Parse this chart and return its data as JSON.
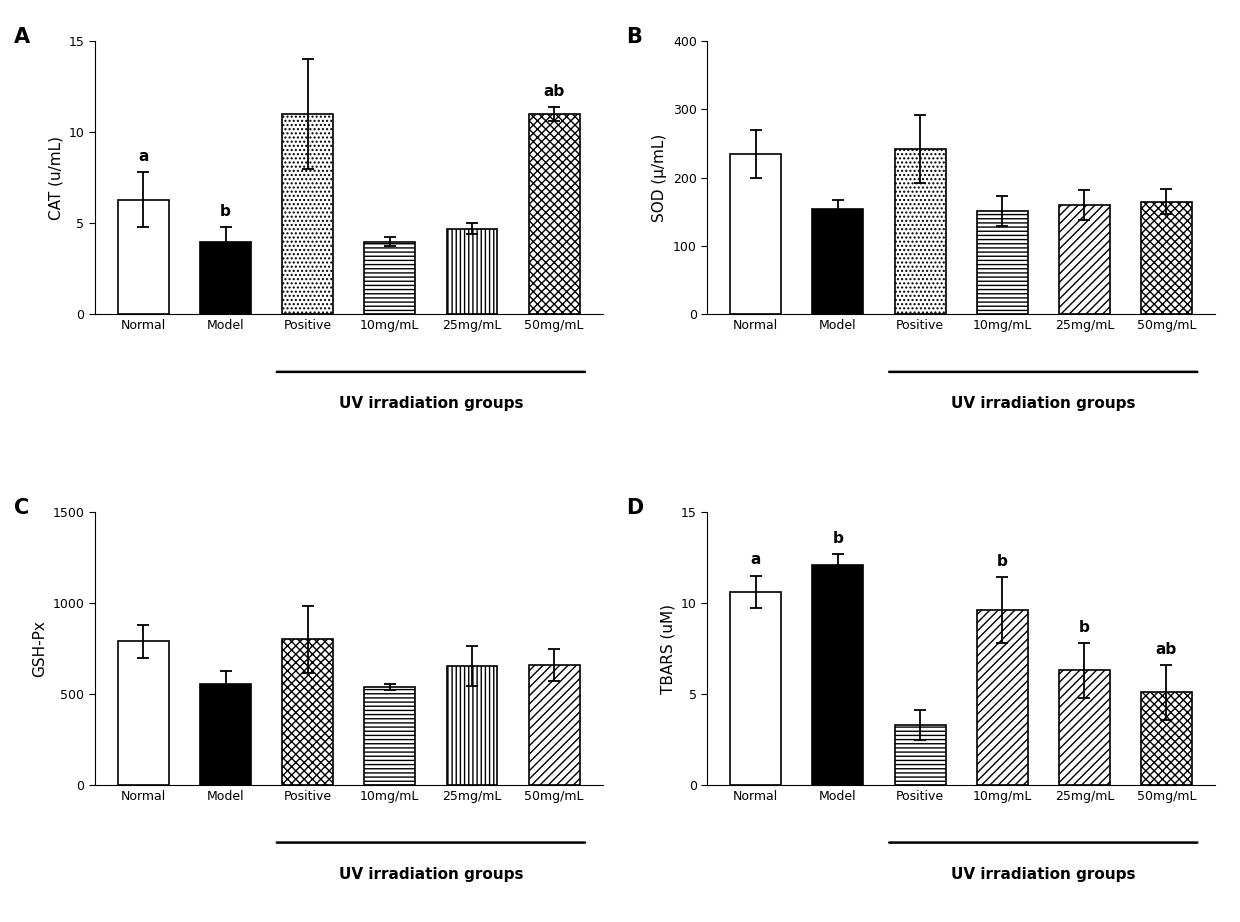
{
  "categories": [
    "Normal",
    "Model",
    "Positive",
    "10mg/mL",
    "25mg/mL",
    "50mg/mL"
  ],
  "panels": {
    "A": {
      "panel_label": "A",
      "ylabel": "CAT (u/mL)",
      "ylim": [
        0,
        15
      ],
      "yticks": [
        0,
        5,
        10,
        15
      ],
      "values": [
        6.3,
        4.0,
        11.0,
        4.0,
        4.7,
        11.0
      ],
      "errors": [
        1.5,
        0.8,
        3.0,
        0.25,
        0.3,
        0.4
      ],
      "annotations": [
        [
          "a",
          0
        ],
        [
          "b",
          1
        ],
        [
          "ab",
          5
        ]
      ],
      "face_colors": [
        "white",
        "black",
        "white",
        "white",
        "white",
        "white"
      ],
      "hatch_patterns": [
        "",
        "",
        "....",
        "----",
        "||||",
        "xxxx"
      ]
    },
    "B": {
      "panel_label": "B",
      "ylabel": "SOD (μ/mL)",
      "ylim": [
        0,
        400
      ],
      "yticks": [
        0,
        100,
        200,
        300,
        400
      ],
      "values": [
        235,
        155,
        242,
        152,
        160,
        165
      ],
      "errors": [
        35,
        12,
        50,
        22,
        22,
        18
      ],
      "annotations": [],
      "face_colors": [
        "white",
        "black",
        "white",
        "white",
        "white",
        "white"
      ],
      "hatch_patterns": [
        "",
        "",
        "....",
        "----",
        "////",
        "xxxx"
      ]
    },
    "C": {
      "panel_label": "C",
      "ylabel": "GSH-Px",
      "ylim": [
        0,
        1500
      ],
      "yticks": [
        0,
        500,
        1000,
        1500
      ],
      "values": [
        790,
        555,
        800,
        540,
        655,
        660
      ],
      "errors": [
        90,
        70,
        185,
        15,
        110,
        90
      ],
      "annotations": [],
      "face_colors": [
        "white",
        "black",
        "white",
        "white",
        "white",
        "white"
      ],
      "hatch_patterns": [
        "",
        "",
        "xxxx",
        "----",
        "||||",
        "////"
      ]
    },
    "D": {
      "panel_label": "D",
      "ylabel": "TBARS (uM)",
      "ylim": [
        0,
        15
      ],
      "yticks": [
        0,
        5,
        10,
        15
      ],
      "values": [
        10.6,
        12.1,
        3.3,
        9.6,
        6.3,
        5.1
      ],
      "errors": [
        0.9,
        0.6,
        0.8,
        1.8,
        1.5,
        1.5
      ],
      "annotations": [
        [
          "a",
          0
        ],
        [
          "b",
          1
        ],
        [
          "b",
          3
        ],
        [
          "b",
          4
        ],
        [
          "ab",
          5
        ]
      ],
      "face_colors": [
        "white",
        "black",
        "white",
        "white",
        "white",
        "white"
      ],
      "hatch_patterns": [
        "",
        "",
        "----",
        "////",
        "////",
        "xxxx"
      ]
    }
  },
  "xlabel_uv": "UV irradiation groups",
  "bar_width": 0.62,
  "background_color": "#ffffff",
  "font_size_ylabel": 11,
  "font_size_tick": 9,
  "font_size_panel": 15,
  "font_size_annot": 11,
  "font_size_xlabel": 11
}
